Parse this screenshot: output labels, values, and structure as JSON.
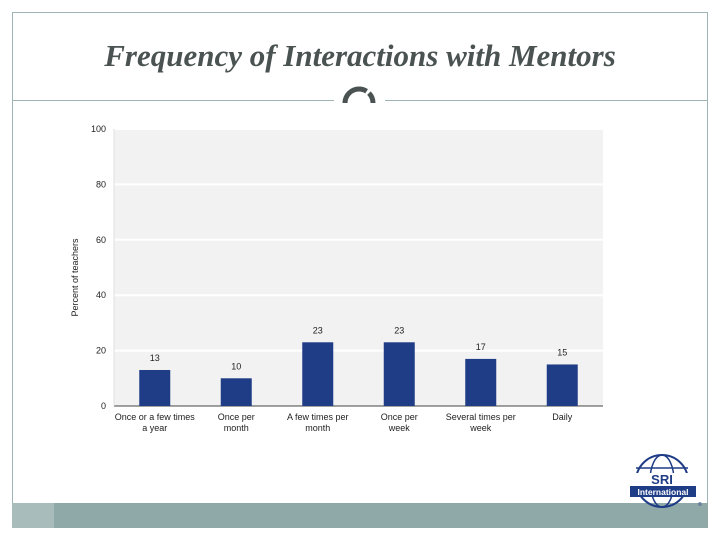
{
  "slide": {
    "title": "Frequency of Interactions with Mentors"
  },
  "chart_data": {
    "type": "bar",
    "title": "Frequency of Interactions with Mentors",
    "xlabel": "",
    "ylabel": "Percent of teachers",
    "ylim": [
      0,
      100
    ],
    "yticks": [
      0,
      20,
      40,
      60,
      80,
      100
    ],
    "ytick_labels": [
      "0",
      "20",
      "40",
      "60",
      "80",
      "100"
    ],
    "grid": true,
    "legend": "none",
    "categories": [
      [
        "Once or a few times",
        "a year"
      ],
      [
        "Once per",
        "month"
      ],
      [
        "A few times per",
        "month"
      ],
      [
        "Once per",
        "week"
      ],
      [
        "Several times per",
        "week"
      ],
      [
        "Daily"
      ]
    ],
    "values": [
      13,
      10,
      23,
      23,
      17,
      15
    ],
    "bar_color": "#1f3c86",
    "plot_background": "#f2f2f2"
  },
  "logo": {
    "name": "sri-international-logo",
    "text_main": "SRI",
    "text_sub": "International",
    "color": "#1f3c86"
  }
}
